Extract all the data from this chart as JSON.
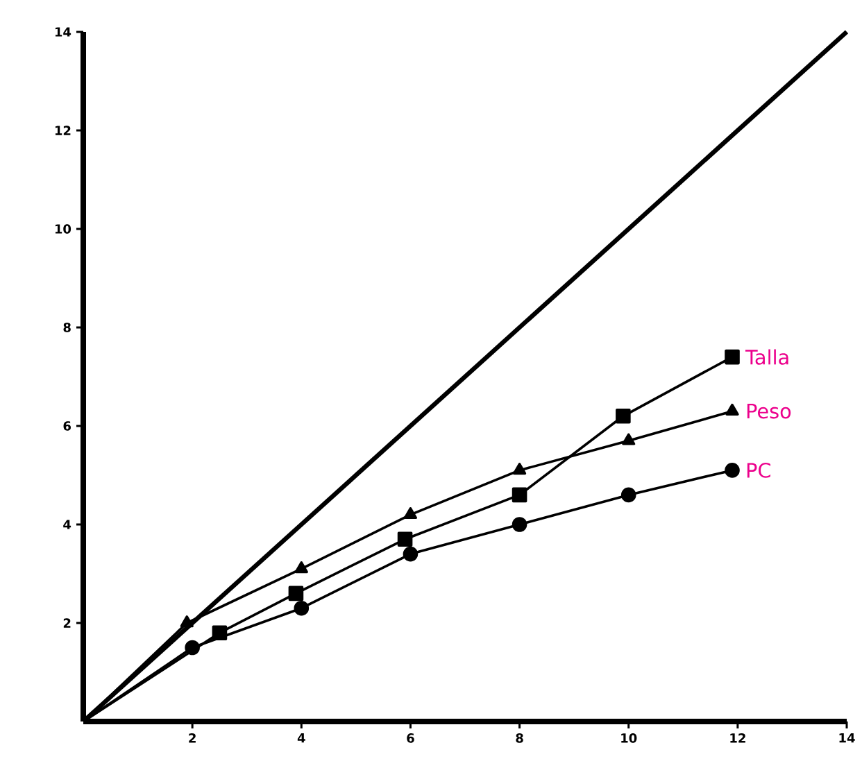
{
  "chart_data": {
    "type": "line",
    "xlim": [
      0,
      14
    ],
    "ylim": [
      0,
      14
    ],
    "xticks": [
      2,
      4,
      6,
      8,
      10,
      12,
      14
    ],
    "yticks": [
      2,
      4,
      6,
      8,
      10,
      12,
      14
    ],
    "grid": false,
    "legend": false,
    "series": [
      {
        "color": "#000000",
        "marker": "none",
        "x": [
          0,
          14
        ],
        "values": [
          0,
          14
        ]
      },
      {
        "name": "Talla",
        "color": "#000000",
        "marker": "square",
        "x": [
          0,
          2.5,
          3.9,
          5.9,
          8,
          9.9,
          11.9
        ],
        "values": [
          0,
          1.8,
          2.6,
          3.7,
          4.6,
          6.2,
          7.4
        ]
      },
      {
        "name": "Peso",
        "color": "#000000",
        "marker": "triangle",
        "x": [
          0,
          1.9,
          4,
          6,
          8,
          10,
          11.9
        ],
        "values": [
          0,
          2.0,
          3.1,
          4.2,
          5.1,
          5.7,
          6.3
        ]
      },
      {
        "name": "PC",
        "color": "#000000",
        "marker": "circle",
        "x": [
          0,
          2,
          4,
          6,
          8,
          10,
          11.9
        ],
        "values": [
          0,
          1.5,
          2.3,
          3.4,
          4.0,
          4.6,
          5.1
        ]
      }
    ]
  }
}
